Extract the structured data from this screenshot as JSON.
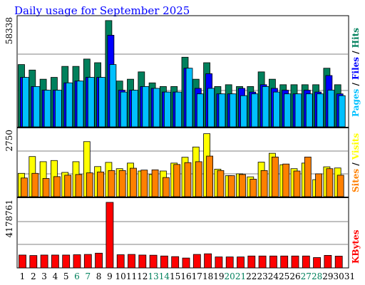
{
  "title": "Daily usage for September 2025",
  "colors": {
    "hits": "#00805c",
    "files": "#0000ff",
    "pages": "#00c0ff",
    "visits": "#ffff00",
    "sites": "#ff8000",
    "kbytes": "#ff0000",
    "weekend_label": "#00805c",
    "weekday_label": "#000000",
    "title": "#0000ff"
  },
  "chart_data": [
    {
      "type": "bar",
      "panel": "hits-files-pages",
      "max_label": "58338",
      "ylim": [
        0,
        58338
      ],
      "legend": [
        {
          "text": "Pages",
          "color": "#00c0ff"
        },
        {
          "text": " / ",
          "color": "#000000"
        },
        {
          "text": "Files",
          "color": "#0000ff"
        },
        {
          "text": " / ",
          "color": "#000000"
        },
        {
          "text": "Hits",
          "color": "#00805c"
        }
      ],
      "x": [
        1,
        2,
        3,
        4,
        5,
        6,
        7,
        8,
        9,
        10,
        11,
        12,
        13,
        14,
        15,
        16,
        17,
        18,
        19,
        20,
        21,
        22,
        23,
        24,
        25,
        26,
        27,
        28,
        29,
        30,
        31
      ],
      "series": [
        {
          "name": "Hits",
          "values": [
            34000,
            31000,
            26000,
            27000,
            33000,
            33000,
            37000,
            35000,
            58000,
            25000,
            26000,
            30000,
            24000,
            22000,
            22000,
            38000,
            26000,
            35000,
            22000,
            23000,
            22000,
            22000,
            30000,
            26000,
            23000,
            23000,
            23000,
            23000,
            32000,
            23000,
            0
          ]
        },
        {
          "name": "Files",
          "values": [
            27000,
            22000,
            20000,
            20000,
            24000,
            25000,
            27000,
            27000,
            50000,
            20000,
            20000,
            22000,
            21000,
            19000,
            19000,
            32000,
            21000,
            29000,
            18000,
            18000,
            21000,
            19000,
            23000,
            21000,
            20000,
            18000,
            20000,
            19000,
            28000,
            18000,
            0
          ]
        },
        {
          "name": "Pages",
          "values": [
            27000,
            22000,
            20000,
            20000,
            24000,
            25000,
            27000,
            27000,
            34000,
            19000,
            20000,
            22000,
            21000,
            19000,
            19000,
            32000,
            18000,
            21000,
            18000,
            18000,
            17000,
            18000,
            22000,
            19000,
            18000,
            18000,
            18000,
            18000,
            20000,
            17000,
            0
          ]
        }
      ]
    },
    {
      "type": "bar",
      "panel": "visits-sites",
      "max_label": "2750",
      "ylim": [
        0,
        2750
      ],
      "legend": [
        {
          "text": "Sites",
          "color": "#ff8000"
        },
        {
          "text": " / ",
          "color": "#000000"
        },
        {
          "text": "Visits",
          "color": "#ffff00"
        }
      ],
      "x": [
        1,
        2,
        3,
        4,
        5,
        6,
        7,
        8,
        9,
        10,
        11,
        12,
        13,
        14,
        15,
        16,
        17,
        18,
        19,
        20,
        21,
        22,
        23,
        24,
        25,
        26,
        27,
        28,
        29,
        30,
        31
      ],
      "series": [
        {
          "name": "Visits",
          "values": [
            1000,
            1720,
            1500,
            1550,
            1040,
            1500,
            2360,
            1290,
            1470,
            1200,
            1440,
            1100,
            950,
            1100,
            1440,
            1690,
            2130,
            2700,
            1180,
            900,
            980,
            850,
            1480,
            1860,
            1370,
            1200,
            1440,
            730,
            1280,
            1230,
            0
          ]
        },
        {
          "name": "Sites",
          "values": [
            800,
            1000,
            780,
            860,
            920,
            950,
            1020,
            1060,
            1120,
            1120,
            1220,
            1140,
            1150,
            820,
            1380,
            1460,
            1500,
            1740,
            1120,
            900,
            950,
            750,
            1120,
            1700,
            1400,
            1100,
            1700,
            980,
            1200,
            920,
            0
          ]
        }
      ]
    },
    {
      "type": "bar",
      "panel": "kbytes",
      "max_label": "4178761",
      "ylim": [
        0,
        4178761
      ],
      "legend": [
        {
          "text": "KBytes",
          "color": "#ff0000"
        }
      ],
      "x": [
        1,
        2,
        3,
        4,
        5,
        6,
        7,
        8,
        9,
        10,
        11,
        12,
        13,
        14,
        15,
        16,
        17,
        18,
        19,
        20,
        21,
        22,
        23,
        24,
        25,
        26,
        27,
        28,
        29,
        30,
        31
      ],
      "series": [
        {
          "name": "KBytes",
          "values": [
            820000,
            790000,
            820000,
            820000,
            820000,
            840000,
            860000,
            940000,
            4178761,
            840000,
            860000,
            820000,
            810000,
            760000,
            720000,
            630000,
            860000,
            900000,
            700000,
            700000,
            700000,
            760000,
            760000,
            760000,
            760000,
            760000,
            760000,
            660000,
            800000,
            750000,
            0
          ]
        }
      ]
    }
  ],
  "day_labels": [
    {
      "text": "1",
      "weekend": false
    },
    {
      "text": "2",
      "weekend": false
    },
    {
      "text": "3",
      "weekend": false
    },
    {
      "text": "4",
      "weekend": false
    },
    {
      "text": "5",
      "weekend": false
    },
    {
      "text": "6",
      "weekend": true
    },
    {
      "text": "7",
      "weekend": true
    },
    {
      "text": "8",
      "weekend": false
    },
    {
      "text": "9",
      "weekend": false
    },
    {
      "text": "10",
      "weekend": false
    },
    {
      "text": "11",
      "weekend": false
    },
    {
      "text": "12",
      "weekend": false
    },
    {
      "text": "13",
      "weekend": true
    },
    {
      "text": "14",
      "weekend": true
    },
    {
      "text": "15",
      "weekend": false
    },
    {
      "text": "16",
      "weekend": false
    },
    {
      "text": "17",
      "weekend": false
    },
    {
      "text": "18",
      "weekend": false
    },
    {
      "text": "19",
      "weekend": false
    },
    {
      "text": "20",
      "weekend": true
    },
    {
      "text": "21",
      "weekend": true
    },
    {
      "text": "22",
      "weekend": false
    },
    {
      "text": "23",
      "weekend": false
    },
    {
      "text": "24",
      "weekend": false
    },
    {
      "text": "25",
      "weekend": false
    },
    {
      "text": "26",
      "weekend": false
    },
    {
      "text": "27",
      "weekend": true
    },
    {
      "text": "28",
      "weekend": true
    },
    {
      "text": "29",
      "weekend": false
    },
    {
      "text": "30",
      "weekend": false
    },
    {
      "text": "31",
      "weekend": false
    }
  ]
}
